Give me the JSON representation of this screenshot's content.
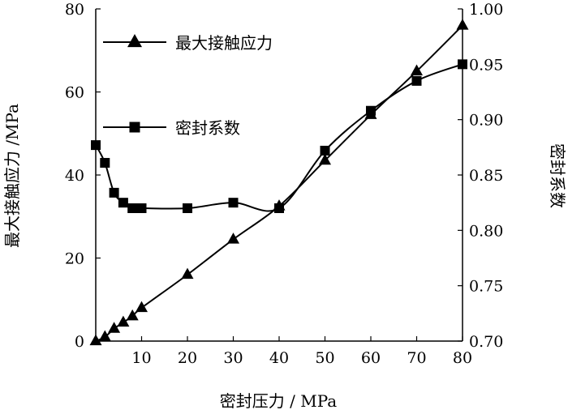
{
  "chart_data": {
    "type": "line",
    "xlabel": "密封压力 / MPa",
    "ylabel_left": "最大接触应力 /MPa",
    "ylabel_right": "密封系数",
    "xlim": [
      0,
      80
    ],
    "ylim_left": [
      0,
      80
    ],
    "ylim_right": [
      0.7,
      1.0
    ],
    "x_ticks": [
      "10",
      "20",
      "30",
      "40",
      "50",
      "60",
      "70",
      "80"
    ],
    "y_ticks_left": [
      "0",
      "20",
      "40",
      "60",
      "80"
    ],
    "y_ticks_right": [
      "0.70",
      "0.75",
      "0.80",
      "0.85",
      "0.90",
      "0.95",
      "1.00"
    ],
    "legend_position": "top-left",
    "grid": false,
    "series": [
      {
        "name": "最大接触应力",
        "axis": "left",
        "marker": "triangle",
        "x": [
          0,
          2,
          4,
          6,
          8,
          10,
          20,
          30,
          40,
          50,
          60,
          70,
          80
        ],
        "y": [
          0,
          1,
          3,
          4.5,
          6,
          8,
          16,
          24.5,
          32.5,
          43.5,
          54.5,
          65,
          76
        ]
      },
      {
        "name": "密封系数",
        "axis": "right",
        "marker": "square",
        "x": [
          0,
          2,
          4,
          6,
          8,
          10,
          20,
          30,
          40,
          50,
          60,
          70,
          80
        ],
        "y": [
          0.877,
          0.861,
          0.834,
          0.825,
          0.82,
          0.82,
          0.82,
          0.825,
          0.82,
          0.872,
          0.908,
          0.935,
          0.95
        ]
      }
    ]
  }
}
